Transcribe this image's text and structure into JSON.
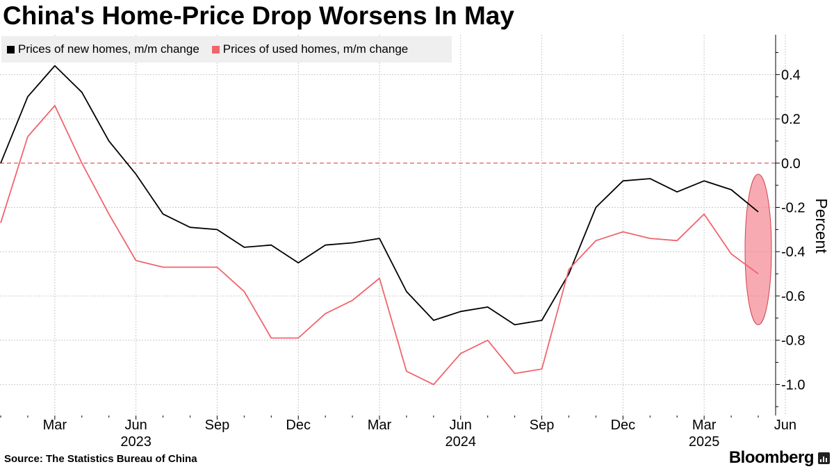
{
  "title": "China's Home-Price Drop Worsens In May",
  "source": "Source: The Statistics Bureau of China",
  "brand": "Bloomberg",
  "brand_icon": "bloomberg-terminal-icon",
  "chart_data": {
    "type": "line",
    "ylabel": "Percent",
    "ylim": [
      -1.14,
      0.58
    ],
    "yticks": [
      0.4,
      0.2,
      0.0,
      -0.2,
      -0.4,
      -0.6,
      -0.8,
      -1.0
    ],
    "ytick_labels": [
      "0.4",
      "0.2",
      "0.0",
      "-0.2",
      "-0.4",
      "-0.6",
      "-0.8",
      "-1.0"
    ],
    "x_month_ticks": [
      {
        "index": 2,
        "label": "Mar"
      },
      {
        "index": 5,
        "label": "Jun"
      },
      {
        "index": 8,
        "label": "Sep"
      },
      {
        "index": 11,
        "label": "Dec"
      },
      {
        "index": 14,
        "label": "Mar"
      },
      {
        "index": 17,
        "label": "Jun"
      },
      {
        "index": 20,
        "label": "Sep"
      },
      {
        "index": 23,
        "label": "Dec"
      },
      {
        "index": 26,
        "label": "Mar"
      },
      {
        "index": 29,
        "label": "Jun"
      }
    ],
    "x_year_labels": [
      {
        "index": 5,
        "label": "2023"
      },
      {
        "index": 17,
        "label": "2024"
      },
      {
        "index": 26,
        "label": "2025"
      }
    ],
    "categories": [
      "Jan 2023",
      "Feb 2023",
      "Mar 2023",
      "Apr 2023",
      "May 2023",
      "Jun 2023",
      "Jul 2023",
      "Aug 2023",
      "Sep 2023",
      "Oct 2023",
      "Nov 2023",
      "Dec 2023",
      "Jan 2024",
      "Feb 2024",
      "Mar 2024",
      "Apr 2024",
      "May 2024",
      "Jun 2024",
      "Jul 2024",
      "Aug 2024",
      "Sep 2024",
      "Oct 2024",
      "Nov 2024",
      "Dec 2024",
      "Jan 2025",
      "Feb 2025",
      "Mar 2025",
      "Apr 2025",
      "May 2025"
    ],
    "series": [
      {
        "name": "Prices of new homes, m/m change",
        "color": "#000000",
        "values": [
          0.0,
          0.3,
          0.44,
          0.32,
          0.1,
          -0.05,
          -0.23,
          -0.29,
          -0.3,
          -0.38,
          -0.37,
          -0.45,
          -0.37,
          -0.36,
          -0.34,
          -0.58,
          -0.71,
          -0.67,
          -0.65,
          -0.73,
          -0.71,
          -0.5,
          -0.2,
          -0.08,
          -0.07,
          -0.13,
          -0.08,
          -0.12,
          -0.22
        ]
      },
      {
        "name": "Prices of used homes, m/m change",
        "color": "#f0646e",
        "values": [
          -0.27,
          0.12,
          0.26,
          0.0,
          -0.23,
          -0.44,
          -0.47,
          -0.47,
          -0.47,
          -0.58,
          -0.79,
          -0.79,
          -0.68,
          -0.62,
          -0.52,
          -0.94,
          -1.0,
          -0.86,
          -0.8,
          -0.95,
          -0.93,
          -0.48,
          -0.35,
          -0.31,
          -0.34,
          -0.35,
          -0.23,
          -0.41,
          -0.5
        ]
      }
    ],
    "zero_line": {
      "value": 0.0,
      "color": "#e0444e",
      "style": "dashed"
    },
    "highlight": {
      "index": 28,
      "center": -0.39,
      "radius": 0.34,
      "color": "#f47c88"
    }
  }
}
